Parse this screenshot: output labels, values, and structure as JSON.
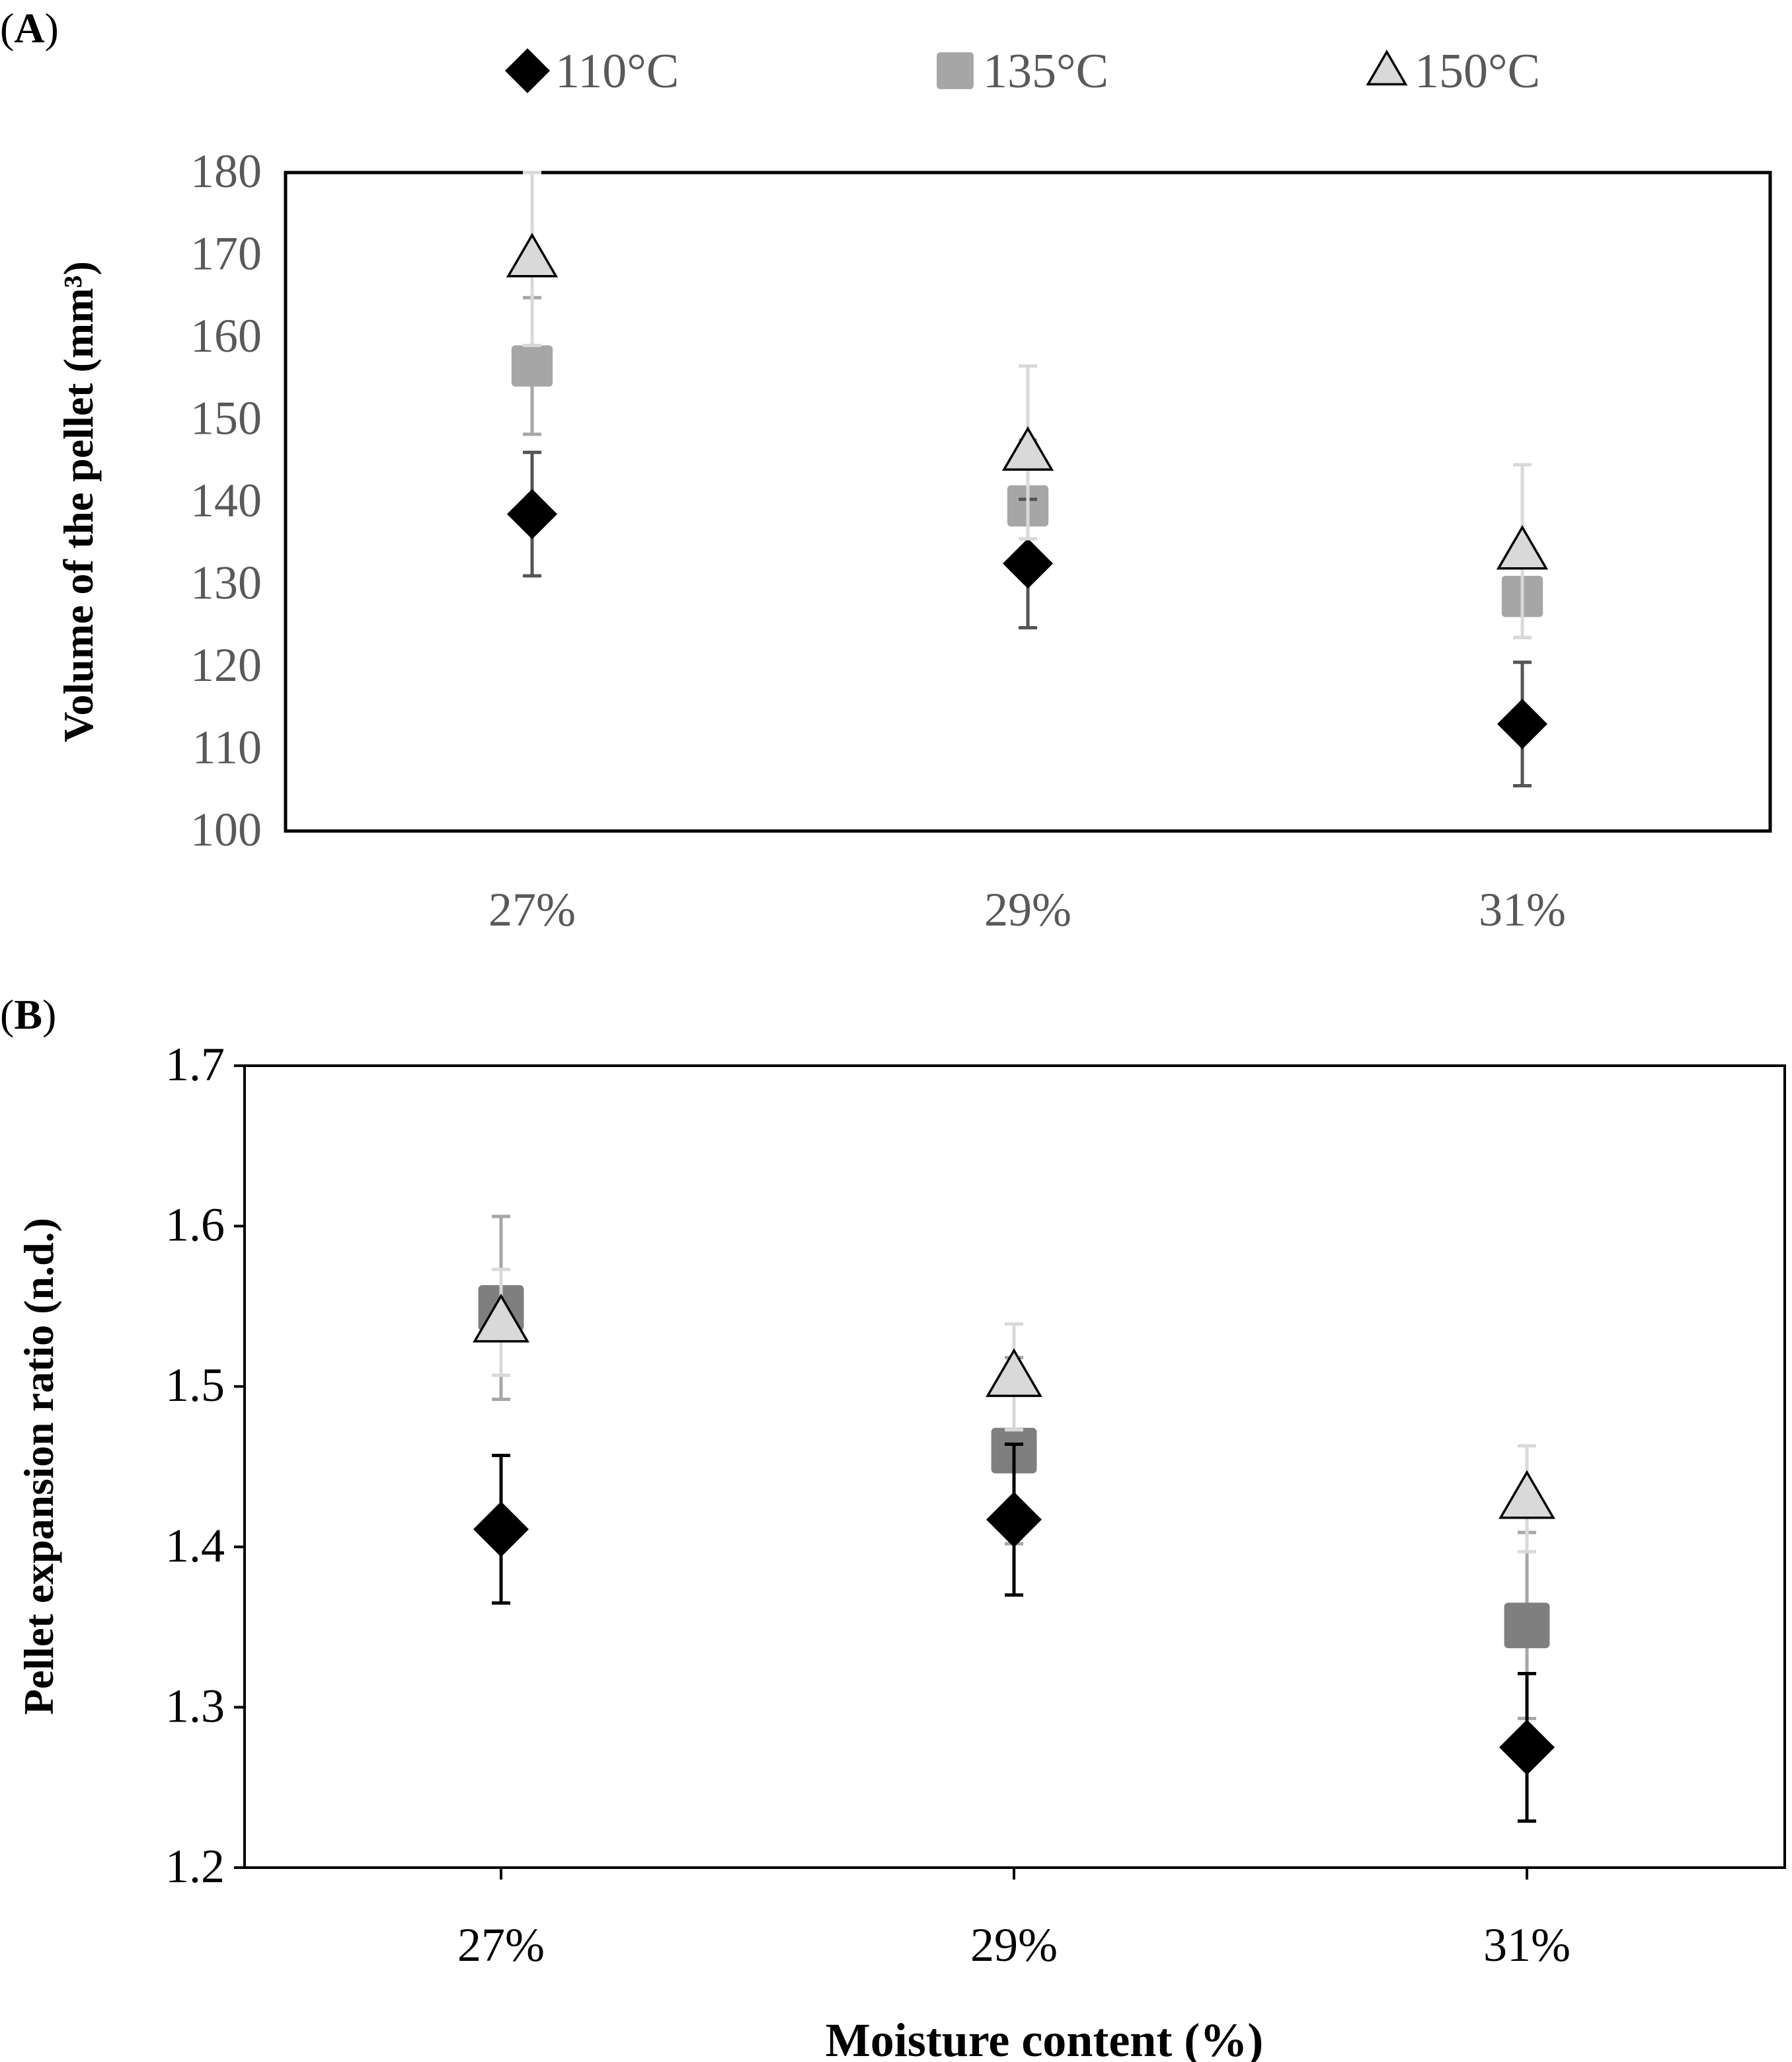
{
  "chart_data": [
    {
      "panel_label": "(A)",
      "type": "scatter",
      "categories": [
        "27%",
        "29%",
        "31%"
      ],
      "xlabel": "",
      "ylabel": "Volume of the pellet (mm³)",
      "ylim": [
        100,
        180
      ],
      "yticks": [
        "100",
        "110",
        "120",
        "130",
        "140",
        "150",
        "160",
        "170",
        "180"
      ],
      "grid": false,
      "legend": "top-center",
      "series": [
        {
          "name": "110°C",
          "marker": "diamond",
          "color": "#000000",
          "error_color": "#555555",
          "values": [
            138.5,
            132.5,
            113.0
          ],
          "errors": [
            7.5,
            7.8,
            7.5
          ]
        },
        {
          "name": "135°C",
          "marker": "square",
          "color": "#a6a6a6",
          "error_color": "#a6a6a6",
          "values": [
            156.5,
            139.5,
            128.5
          ],
          "errors": [
            8.3,
            8.0,
            5.0
          ]
        },
        {
          "name": "150°C",
          "marker": "triangle",
          "color": "#d9d9d9",
          "error_color": "#d9d9d9",
          "values": [
            169.5,
            146.0,
            134.0
          ],
          "errors": [
            10.5,
            10.5,
            10.5
          ]
        }
      ]
    },
    {
      "panel_label": "(B)",
      "type": "scatter",
      "categories": [
        "27%",
        "29%",
        "31%"
      ],
      "xlabel": "Moisture content (%)",
      "ylabel": "Pellet expansion  ratio (n.d.)",
      "ylim": [
        1.2,
        1.7
      ],
      "yticks": [
        "1.2",
        "1.3",
        "1.4",
        "1.5",
        "1.6",
        "1.7"
      ],
      "grid": false,
      "series": [
        {
          "name": "110°C",
          "marker": "diamond",
          "color": "#000000",
          "error_color": "#000000",
          "values": [
            1.411,
            1.417,
            1.275
          ],
          "errors": [
            0.046,
            0.047,
            0.046
          ]
        },
        {
          "name": "135°C",
          "marker": "square",
          "color": "#7f7f7f",
          "error_color": "#a6a6a6",
          "values": [
            1.549,
            1.46,
            1.351
          ],
          "errors": [
            0.057,
            0.058,
            0.058
          ]
        },
        {
          "name": "150°C",
          "marker": "triangle",
          "color": "#d9d9d9",
          "error_color": "#d9d9d9",
          "values": [
            1.54,
            1.506,
            1.43
          ],
          "errors": [
            0.033,
            0.033,
            0.033
          ]
        }
      ]
    }
  ]
}
